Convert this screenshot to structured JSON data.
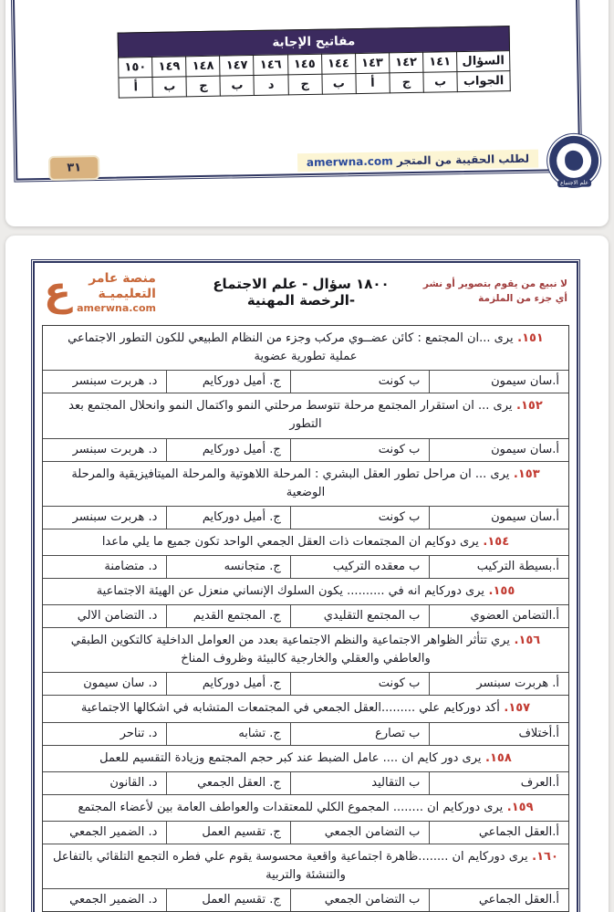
{
  "colors": {
    "answer_key_header_bg": "#3b2a5e",
    "frame_navy": "#2e3560",
    "logo_orange": "#c8683a",
    "question_number_red": "#c23b32",
    "page_badge_tan": "#d9b27f",
    "order_highlight_yellow": "#fcf5d4",
    "warning_red": "#a03d3d"
  },
  "page1": {
    "answer_key": {
      "title": "مفاتيح الإجابة",
      "question_label": "السؤال",
      "answer_label": "الجواب",
      "columns": [
        {
          "q": "١٤١",
          "a": "ب"
        },
        {
          "q": "١٤٢",
          "a": "ج"
        },
        {
          "q": "١٤٣",
          "a": "أ"
        },
        {
          "q": "١٤٤",
          "a": "ب"
        },
        {
          "q": "١٤٥",
          "a": "ج"
        },
        {
          "q": "١٤٦",
          "a": "د"
        },
        {
          "q": "١٤٧",
          "a": "ب"
        },
        {
          "q": "١٤٨",
          "a": "ج"
        },
        {
          "q": "١٤٩",
          "a": "ب"
        },
        {
          "q": "١٥٠",
          "a": "أ"
        }
      ]
    },
    "footer": {
      "page_number": "٣١",
      "order_text": "لطلب الحقيبة من المتجر",
      "order_domain": "amerwna.com",
      "seal_text": "علم الاجتماع"
    }
  },
  "page2": {
    "header": {
      "warning": "لا نبيع من يقوم بتصوير أو نشر أي جزء من الملزمة",
      "title": "١٨٠٠ سؤال - علم الاجتماع -الرخصة المهنية",
      "logo": {
        "glyph": "ع",
        "line1": "منصة عامر",
        "line2": "التعليميـة",
        "domain": "amerwna.com"
      }
    },
    "questions": [
      {
        "number": "١٥١",
        "text": "يرى ...ان المجتمع : كائن عضــوي مركب وجزء من النظام الطبيعي للكون التطور الاجتماعي عملية تطورية عضوية",
        "options": [
          "أ.سان سيمون",
          "ب  كونت",
          "ج.  أميل دوركايم",
          "د.  هربرت سبنسر"
        ]
      },
      {
        "number": "١٥٢",
        "text": "يرى ... ان  استقرار المجتمع مرحلة تتوسط مرحلتي النمو واكتمال النمو وانحلال المجتمع بعد التطور",
        "options": [
          "أ.سان سيمون",
          "ب  كونت",
          "ج.  أميل دوركايم",
          "د.  هربرت سبنسر"
        ]
      },
      {
        "number": "١٥٣",
        "text": "يرى ... ان مراحل تطور العقل البشري : المرحلة اللاهوتية والمرحلة الميتافيزيقية والمرحلة الوضعية",
        "options": [
          "أ.سان سيمون",
          "ب  كونت",
          "ج.  أميل دوركايم",
          "د.  هربرت سبنسر"
        ]
      },
      {
        "number": "١٥٤",
        "text": "يرى دوكايم ان  المجتمعات ذات العقل الجمعي الواحد تكون جميع ما يلي ماعدا",
        "options": [
          "أ.بسيطة التركيب",
          "ب  معقده التركيب",
          "ج.  متجانسه",
          "د.  متضامنة"
        ]
      },
      {
        "number": "١٥٥",
        "text": "يرى دوركايم انه في .......... يكون السلوك الإنساني منعزل عن الهيئة الاجتماعية",
        "options": [
          "أ.التضامن العضوي",
          "ب  المجتمع التقليدي",
          "ج.  المجتمع القديم",
          "د.  التضامن الالي"
        ]
      },
      {
        "number": "١٥٦",
        "text": "يري  تتأثر الظواهر الاجتماعية والنظم الاجتماعية بعدد من العوامل الداخلية  كالتكوين الطبقي والعاطفي والعقلي والخارجية كالبيئة وظروف المناخ",
        "options": [
          "أ. هربرت سبنسر",
          "ب  كونت",
          "ج.  أميل دوركايم",
          "د.  سان سيمون"
        ]
      },
      {
        "number": "١٥٧",
        "text": "أكد دوركايم علي  .........العقل الجمعي في المجتمعات المتشابه في اشكالها الاجتماعية",
        "options": [
          "أ.أختلاف",
          "ب  تصارع",
          "ج.  تشابه",
          "د.  تناحر"
        ]
      },
      {
        "number": "١٥٨",
        "text": "يرى دور كايم ان ....  عامل الضبط عند كبر حجم المجتمع  وزيادة التقسيم للعمل",
        "options": [
          "أ.العرف",
          "ب  التقاليد",
          "ج.  العقل الجمعي",
          "د.  القانون"
        ]
      },
      {
        "number": "١٥٩",
        "text": "يرى دوركايم ان ........ المجموع الكلي للمعتقدات والعواطف العامة بين لأعضاء المجتمع",
        "options": [
          "أ.العقل الجماعي",
          "ب  التضامن الجمعي",
          "ج.  تقسيم العمل",
          "د.  الضمير الجمعي"
        ]
      },
      {
        "number": "١٦٠",
        "text": "يرى دوركايم ان ........ظاهرة اجتماعية واقعية محسوسة  يقوم علي فطره التجمع التلقائي بالتفاعل والتنشئة والتربية",
        "options": [
          "أ.العقل الجماعي",
          "ب  التضامن الجمعي",
          "ج.  تقسيم العمل",
          "د.  الضمير الجمعي"
        ]
      }
    ]
  }
}
